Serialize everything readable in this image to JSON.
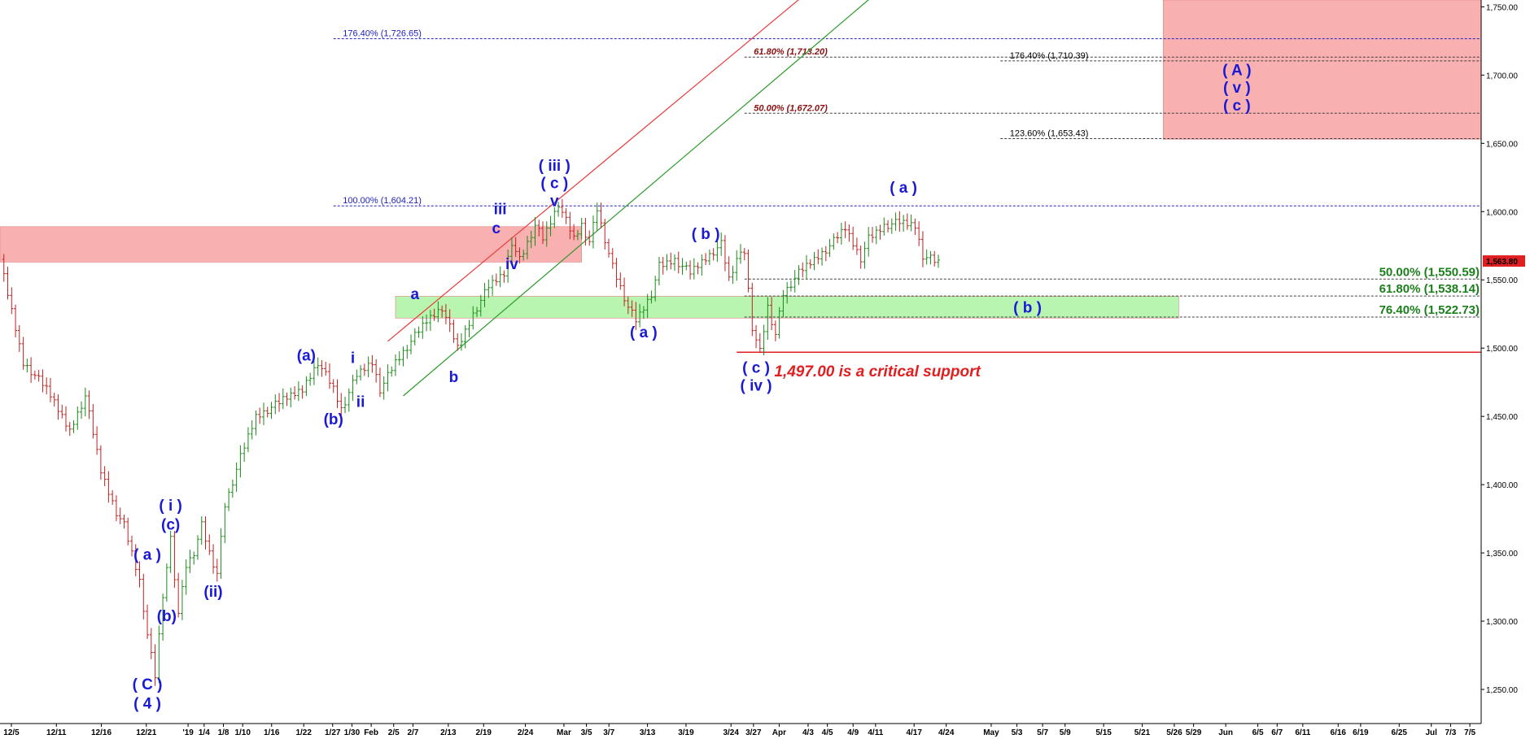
{
  "chart_data": {
    "type": "line",
    "subtype": "candlestick-price-chart-with-elliott-wave-annotations",
    "ylim": [
      1225,
      1755
    ],
    "grid": false,
    "y_ticks": [
      "1,250.00",
      "1,300.00",
      "1,350.00",
      "1,400.00",
      "1,450.00",
      "1,500.00",
      "1,550.00",
      "1,600.00",
      "1,650.00",
      "1,700.00",
      "1,750.00"
    ],
    "x_ticks": [
      "12/5",
      "12/11",
      "12/16",
      "12/21",
      "'19",
      "1/4",
      "1/8",
      "1/10",
      "1/16",
      "1/22",
      "1/27",
      "1/30",
      "Feb",
      "2/5",
      "2/7",
      "2/13",
      "2/19",
      "2/24",
      "Mar",
      "3/5",
      "3/7",
      "3/13",
      "3/19",
      "3/24",
      "3/27",
      "Apr",
      "4/3",
      "4/5",
      "4/9",
      "4/11",
      "4/17",
      "4/24",
      "May",
      "5/3",
      "5/7",
      "5/9",
      "5/15",
      "5/21",
      "5/26",
      "5/29",
      "Jun",
      "6/5",
      "6/7",
      "6/11",
      "6/16",
      "6/19",
      "6/25",
      "Jul",
      "7/3",
      "7/5"
    ],
    "last_price": {
      "label": "1,563.80",
      "value": 1563.8
    },
    "price_path": [
      {
        "t": 0,
        "v": 1565
      },
      {
        "t": 3,
        "v": 1490
      },
      {
        "t": 6,
        "v": 1470
      },
      {
        "t": 9,
        "v": 1440
      },
      {
        "t": 11,
        "v": 1465
      },
      {
        "t": 13,
        "v": 1410
      },
      {
        "t": 15,
        "v": 1380
      },
      {
        "t": 16,
        "v": 1370
      },
      {
        "t": 18,
        "v": 1330
      },
      {
        "t": 19,
        "v": 1290
      },
      {
        "t": 20,
        "v": 1260
      },
      {
        "t": 21,
        "v": 1320
      },
      {
        "t": 22,
        "v": 1360
      },
      {
        "t": 23,
        "v": 1305
      },
      {
        "t": 24,
        "v": 1340
      },
      {
        "t": 25,
        "v": 1350
      },
      {
        "t": 26,
        "v": 1370
      },
      {
        "t": 27,
        "v": 1350
      },
      {
        "t": 28,
        "v": 1335
      },
      {
        "t": 29,
        "v": 1385
      },
      {
        "t": 31,
        "v": 1420
      },
      {
        "t": 33,
        "v": 1450
      },
      {
        "t": 36,
        "v": 1460
      },
      {
        "t": 39,
        "v": 1470
      },
      {
        "t": 41,
        "v": 1490
      },
      {
        "t": 43,
        "v": 1470
      },
      {
        "t": 44,
        "v": 1455
      },
      {
        "t": 46,
        "v": 1480
      },
      {
        "t": 48,
        "v": 1490
      },
      {
        "t": 49,
        "v": 1470
      },
      {
        "t": 51,
        "v": 1490
      },
      {
        "t": 53,
        "v": 1505
      },
      {
        "t": 55,
        "v": 1520
      },
      {
        "t": 57,
        "v": 1530
      },
      {
        "t": 59,
        "v": 1500
      },
      {
        "t": 61,
        "v": 1525
      },
      {
        "t": 63,
        "v": 1545
      },
      {
        "t": 65,
        "v": 1555
      },
      {
        "t": 66,
        "v": 1578
      },
      {
        "t": 67,
        "v": 1565
      },
      {
        "t": 69,
        "v": 1590
      },
      {
        "t": 70,
        "v": 1580
      },
      {
        "t": 72,
        "v": 1606
      },
      {
        "t": 74,
        "v": 1580
      },
      {
        "t": 75,
        "v": 1590
      },
      {
        "t": 76,
        "v": 1578
      },
      {
        "t": 77,
        "v": 1602
      },
      {
        "t": 78,
        "v": 1580
      },
      {
        "t": 79,
        "v": 1560
      },
      {
        "t": 81,
        "v": 1530
      },
      {
        "t": 82,
        "v": 1520
      },
      {
        "t": 84,
        "v": 1540
      },
      {
        "t": 85,
        "v": 1560
      },
      {
        "t": 87,
        "v": 1565
      },
      {
        "t": 89,
        "v": 1555
      },
      {
        "t": 91,
        "v": 1566
      },
      {
        "t": 93,
        "v": 1576
      },
      {
        "t": 94,
        "v": 1550
      },
      {
        "t": 95,
        "v": 1565
      },
      {
        "t": 96,
        "v": 1570
      },
      {
        "t": 97,
        "v": 1515
      },
      {
        "t": 98,
        "v": 1497
      },
      {
        "t": 99,
        "v": 1530
      },
      {
        "t": 100,
        "v": 1510
      },
      {
        "t": 101,
        "v": 1540
      },
      {
        "t": 103,
        "v": 1555
      },
      {
        "t": 105,
        "v": 1565
      },
      {
        "t": 107,
        "v": 1575
      },
      {
        "t": 109,
        "v": 1588
      },
      {
        "t": 111,
        "v": 1566
      },
      {
        "t": 112,
        "v": 1580
      },
      {
        "t": 114,
        "v": 1590
      },
      {
        "t": 116,
        "v": 1592
      },
      {
        "t": 118,
        "v": 1590
      },
      {
        "t": 119,
        "v": 1568
      },
      {
        "t": 120,
        "v": 1566
      },
      {
        "t": 121,
        "v": 1563.8
      }
    ],
    "time_range": [
      0,
      191
    ],
    "horizontal_levels": [
      {
        "label": "176.40% (1,726.65)",
        "value": 1726.65,
        "t_start": 43,
        "t_end": 191,
        "style": "blue-small",
        "label_t": 44
      },
      {
        "label": "61.80% (1,713.20)",
        "value": 1713.2,
        "t_start": 96,
        "t_end": 191,
        "style": "darkred-small",
        "label_t": 97
      },
      {
        "label": "176.40% (1,710.39)",
        "value": 1710.39,
        "t_start": 129,
        "t_end": 191,
        "style": "black-small",
        "label_t": 130
      },
      {
        "label": "50.00% (1,672.07)",
        "value": 1672.07,
        "t_start": 96,
        "t_end": 191,
        "style": "darkred-small",
        "label_t": 97
      },
      {
        "label": "123.60% (1,653.43)",
        "value": 1653.43,
        "t_start": 129,
        "t_end": 191,
        "style": "black-small",
        "label_t": 130
      },
      {
        "label": "100.00% (1,604.21)",
        "value": 1604.21,
        "t_start": 43,
        "t_end": 191,
        "style": "blue-small",
        "label_t": 44
      },
      {
        "label": "50.00% (1,550.59)",
        "value": 1550.59,
        "t_start": 96,
        "t_end": 191,
        "style": "green",
        "label_t": 190
      },
      {
        "label": "61.80% (1,538.14)",
        "value": 1538.14,
        "t_start": 96,
        "t_end": 191,
        "style": "green",
        "label_t": 190
      },
      {
        "label": "76.40% (1,522.73)",
        "value": 1522.73,
        "t_start": 96,
        "t_end": 191,
        "style": "green",
        "label_t": 190
      }
    ],
    "support_line": {
      "value": 1497.0,
      "t_start": 95,
      "t_end": 191,
      "color": "#e02020"
    },
    "zones": [
      {
        "name": "resistance-zone",
        "t_start": 0,
        "t_end": 75,
        "top": 1589,
        "bottom": 1563,
        "color": "#f9b0b0"
      },
      {
        "name": "support-zone",
        "t_start": 51,
        "t_end": 152,
        "top": 1538,
        "bottom": 1522,
        "color": "#b8f5b0"
      },
      {
        "name": "target-zone",
        "t_start": 150,
        "t_end": 191,
        "top": 1755,
        "bottom": 1653,
        "color": "#f9b0b0"
      }
    ],
    "trend_lines": [
      {
        "name": "red-channel-line",
        "from": {
          "t": 50,
          "v": 1505
        },
        "to": {
          "t": 104,
          "v": 1760
        },
        "color": "#e83a3a"
      },
      {
        "name": "green-channel-line",
        "from": {
          "t": 52,
          "v": 1465
        },
        "to": {
          "t": 113,
          "v": 1760
        },
        "color": "#2a9a2a"
      }
    ],
    "wave_labels": [
      {
        "text": "( C )",
        "t": 19,
        "v": 1250
      },
      {
        "text": "( 4 )",
        "t": 19,
        "v": 1236
      },
      {
        "text": "( a )",
        "t": 19,
        "v": 1345
      },
      {
        "text": "(b)",
        "t": 21.5,
        "v": 1300
      },
      {
        "text": "( i )",
        "t": 22,
        "v": 1381
      },
      {
        "text": "(c)",
        "t": 22,
        "v": 1367
      },
      {
        "text": "(ii)",
        "t": 27.5,
        "v": 1318
      },
      {
        "text": "(a)",
        "t": 39.5,
        "v": 1491
      },
      {
        "text": "(b)",
        "t": 43,
        "v": 1444
      },
      {
        "text": "i",
        "t": 45.5,
        "v": 1489
      },
      {
        "text": "ii",
        "t": 46.5,
        "v": 1457
      },
      {
        "text": "a",
        "t": 53.5,
        "v": 1536
      },
      {
        "text": "b",
        "t": 58.5,
        "v": 1475
      },
      {
        "text": "iii",
        "t": 64.5,
        "v": 1598
      },
      {
        "text": "c",
        "t": 64,
        "v": 1584
      },
      {
        "text": "iv",
        "t": 66,
        "v": 1558
      },
      {
        "text": "( iii )",
        "t": 71.5,
        "v": 1630
      },
      {
        "text": "( c )",
        "t": 71.5,
        "v": 1617
      },
      {
        "text": "v",
        "t": 71.5,
        "v": 1604
      },
      {
        "text": "( a )",
        "t": 83,
        "v": 1508
      },
      {
        "text": "( b )",
        "t": 91,
        "v": 1580
      },
      {
        "text": "( c )",
        "t": 97.5,
        "v": 1482
      },
      {
        "text": "( iv )",
        "t": 97.5,
        "v": 1469
      },
      {
        "text": "( a )",
        "t": 116.5,
        "v": 1614
      },
      {
        "text": "( b )",
        "t": 132.5,
        "v": 1526
      },
      {
        "text": "( A )",
        "t": 159.5,
        "v": 1700
      },
      {
        "text": "( v )",
        "t": 159.5,
        "v": 1687
      },
      {
        "text": "( c )",
        "t": 159.5,
        "v": 1674
      }
    ],
    "annotations": [
      {
        "text": "1,497.00 is a critical support",
        "t": 109.5,
        "v": 1483
      }
    ]
  }
}
